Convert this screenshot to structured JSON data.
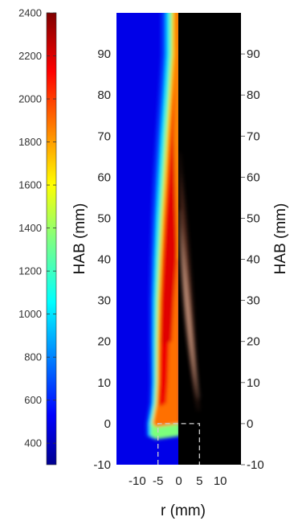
{
  "chart_data": {
    "type": "heatmap",
    "title": "",
    "xlabel": "r (mm)",
    "ylabel": "HAB (mm)",
    "ylabel_right": "HAB (mm)",
    "x_ticks": [
      -10,
      -5,
      0,
      5,
      10
    ],
    "y_ticks": [
      -10,
      0,
      10,
      20,
      30,
      40,
      50,
      60,
      70,
      80,
      90
    ],
    "xlim": [
      -15,
      15
    ],
    "ylim": [
      -10,
      100
    ],
    "left_panel": {
      "content": "temperature field",
      "r_range": [
        -15,
        0
      ],
      "colormap": "jet",
      "flame_front": [
        {
          "hab": -3,
          "r": -5.5,
          "peak_T": 1400
        },
        {
          "hab": 0,
          "r": -5.5,
          "peak_T": 1900
        },
        {
          "hab": 5,
          "r": -4.5,
          "peak_T": 2200
        },
        {
          "hab": 10,
          "r": -4.2,
          "peak_T": 2250
        },
        {
          "hab": 20,
          "r": -4.0,
          "peak_T": 2250
        },
        {
          "hab": 30,
          "r": -3.7,
          "peak_T": 2250
        },
        {
          "hab": 40,
          "r": -3.2,
          "peak_T": 2250
        },
        {
          "hab": 50,
          "r": -2.6,
          "peak_T": 2200
        },
        {
          "hab": 60,
          "r": -1.9,
          "peak_T": 2100
        },
        {
          "hab": 70,
          "r": -1.3,
          "peak_T": 2000
        },
        {
          "hab": 80,
          "r": -0.6,
          "peak_T": 1900
        },
        {
          "hab": 90,
          "r": 0,
          "peak_T": 1850
        },
        {
          "hab": 100,
          "r": 0,
          "peak_T": 1800
        }
      ]
    },
    "right_panel": {
      "content": "flame luminosity image",
      "r_range": [
        0,
        10
      ],
      "background": "#000000",
      "glow_color": "#f6c4a8"
    },
    "burner_outline": {
      "r_range": [
        -5,
        5
      ],
      "hab_range": [
        -10,
        0
      ],
      "style": "dashed",
      "color": "#cfcfcf"
    },
    "colorbar": {
      "ticks": [
        400,
        600,
        800,
        1000,
        1200,
        1400,
        1600,
        1800,
        2000,
        2200,
        2400
      ],
      "range": [
        300,
        2400
      ],
      "colormap": "jet"
    }
  },
  "colors": {
    "jet": [
      "#00008f",
      "#0000ff",
      "#0080ff",
      "#00ffff",
      "#80ff80",
      "#ffff00",
      "#ff8000",
      "#ff0000",
      "#800000"
    ],
    "dashed_outline": "#cfcfcf",
    "axis_text": "#222222"
  }
}
